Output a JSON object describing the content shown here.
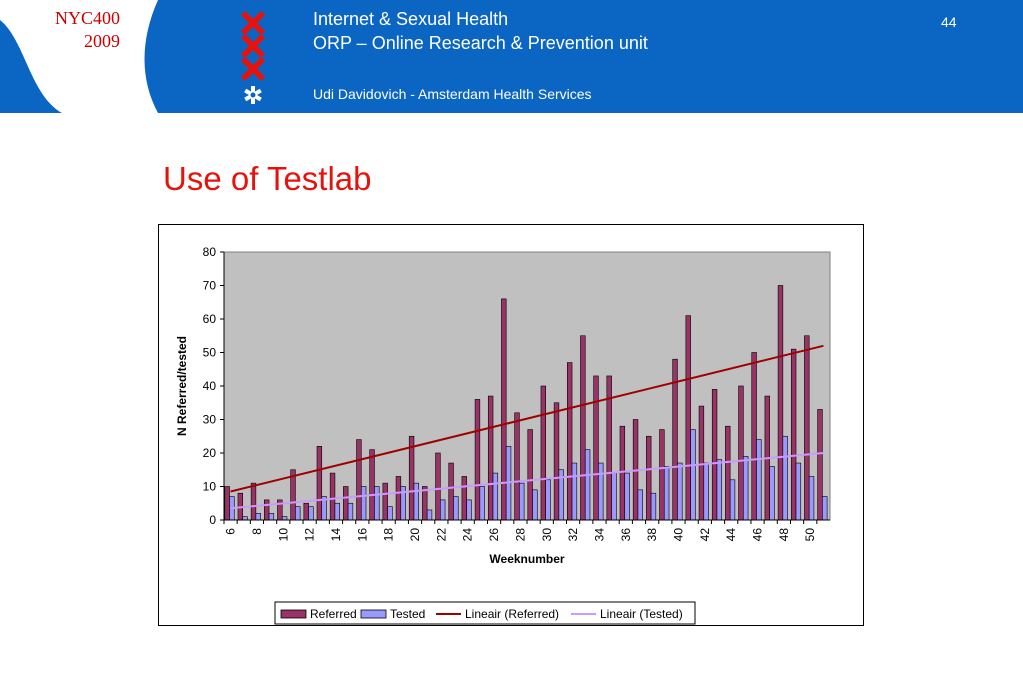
{
  "header": {
    "badge_line1": "NYC400",
    "badge_line2": "2009",
    "line1": "Internet & Sexual Health",
    "line2": "ORP – Online Research & Prevention unit",
    "line3": "Udi Davidovich - Amsterdam Health Services",
    "page_number": "44",
    "banner_color": "#0a66c2",
    "logo_cross_color": "#e8120c",
    "logo_icons": [
      "x-cross-icon",
      "x-cross-icon",
      "x-cross-icon",
      "ambulance-star-icon"
    ]
  },
  "slide": {
    "title": "Use of Testlab",
    "title_color": "#e8120c"
  },
  "chart_data": {
    "type": "bar",
    "x": [
      6,
      7,
      8,
      9,
      10,
      11,
      12,
      13,
      14,
      15,
      16,
      17,
      18,
      19,
      20,
      21,
      22,
      23,
      24,
      25,
      26,
      27,
      28,
      29,
      30,
      31,
      32,
      33,
      34,
      35,
      36,
      37,
      38,
      39,
      40,
      41,
      42,
      43,
      44,
      45,
      46,
      47,
      48,
      49,
      50,
      51
    ],
    "x_tick_labels": [
      "6",
      "8",
      "10",
      "12",
      "14",
      "16",
      "18",
      "20",
      "22",
      "24",
      "26",
      "28",
      "30",
      "32",
      "34",
      "36",
      "38",
      "40",
      "42",
      "44",
      "46",
      "48",
      "50"
    ],
    "series": [
      {
        "name": "Referred",
        "color": "#993366",
        "values": [
          10,
          8,
          11,
          6,
          6,
          15,
          5,
          22,
          14,
          10,
          24,
          21,
          11,
          13,
          25,
          10,
          20,
          17,
          13,
          36,
          37,
          66,
          32,
          27,
          40,
          35,
          47,
          55,
          43,
          43,
          28,
          30,
          25,
          27,
          48,
          61,
          34,
          39,
          28,
          40,
          50,
          37,
          70,
          51,
          55,
          33
        ]
      },
      {
        "name": "Tested",
        "color": "#9999ff",
        "values": [
          7,
          1,
          2,
          2,
          1,
          4,
          4,
          7,
          5,
          5,
          10,
          10,
          4,
          10,
          11,
          3,
          6,
          7,
          6,
          10,
          14,
          22,
          11,
          9,
          12,
          15,
          17,
          21,
          17,
          14,
          14,
          9,
          8,
          16,
          17,
          27,
          17,
          18,
          12,
          19,
          24,
          16,
          25,
          17,
          13,
          7
        ]
      }
    ],
    "trendlines": [
      {
        "name": "Lineair (Referred)",
        "color": "#a00000",
        "start": 8.5,
        "end": 52
      },
      {
        "name": "Lineair (Tested)",
        "color": "#cc99ff",
        "start": 3.5,
        "end": 20
      }
    ],
    "ylim": [
      0,
      80
    ],
    "y_ticks": [
      0,
      10,
      20,
      30,
      40,
      50,
      60,
      70,
      80
    ],
    "ylabel": "N Referred/tested",
    "xlabel": "Weeknumber",
    "plot_background": "#c0c0c0",
    "legend_position": "bottom"
  }
}
